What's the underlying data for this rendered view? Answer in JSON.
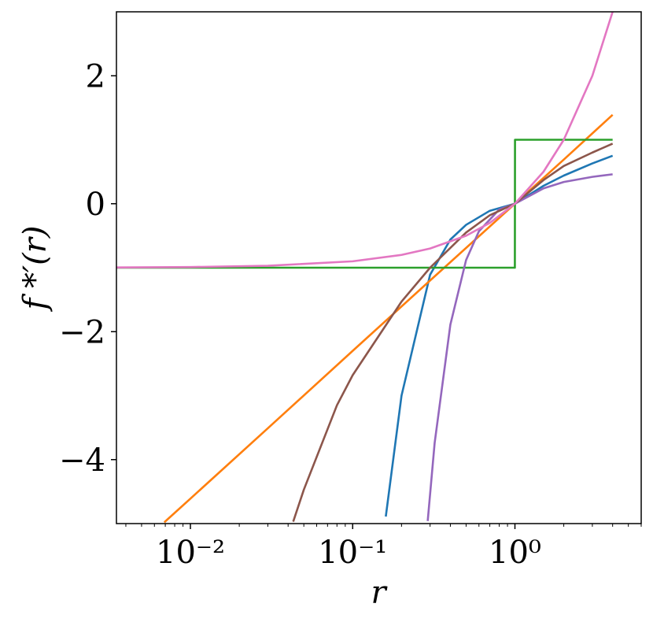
{
  "chart_data": {
    "type": "line",
    "xscale": "log",
    "xlim": [
      0.0035,
      6
    ],
    "ylim": [
      -5,
      3
    ],
    "xlabel": "r",
    "ylabel": "f *′(r)",
    "grid": false,
    "legend": "none",
    "x_ticks": [
      {
        "value": 0.01,
        "label": "10⁻²"
      },
      {
        "value": 0.1,
        "label": "10⁻¹"
      },
      {
        "value": 1,
        "label": "10⁰"
      }
    ],
    "y_ticks": [
      {
        "value": 2,
        "label": "2"
      },
      {
        "value": 0,
        "label": "0"
      },
      {
        "value": -2,
        "label": "−2"
      },
      {
        "value": -4,
        "label": "−4"
      }
    ],
    "series": [
      {
        "color": "#1f77b4",
        "x": [
          0.16,
          0.2,
          0.3,
          0.4,
          0.5,
          0.7,
          1.0,
          1.5,
          2.0,
          3.0,
          4.0
        ],
        "y": [
          -4.89,
          -3.0,
          -1.11,
          -0.56,
          -0.33,
          -0.11,
          0.0,
          0.28,
          0.44,
          0.63,
          0.75
        ]
      },
      {
        "color": "#ff7f0e",
        "x": [
          0.0069,
          0.01,
          0.03,
          0.1,
          0.3,
          1.0,
          2.0,
          4.0
        ],
        "y": [
          -4.98,
          -4.61,
          -3.51,
          -2.3,
          -1.2,
          0.0,
          0.69,
          1.39
        ]
      },
      {
        "color": "#2ca02c",
        "x": [
          0.0035,
          0.999,
          1.0,
          1.001,
          4.0
        ],
        "y": [
          -1.0,
          -1.0,
          0.0,
          1.0,
          1.0
        ]
      },
      {
        "color": "#d62728",
        "x": [],
        "y": []
      },
      {
        "color": "#9467bd",
        "x": [
          0.29,
          0.32,
          0.4,
          0.5,
          0.6,
          0.8,
          1.0,
          1.5,
          2.0,
          3.0,
          4.0
        ],
        "y": [
          -4.96,
          -3.74,
          -1.89,
          -0.88,
          -0.43,
          -0.09,
          0.0,
          0.24,
          0.34,
          0.42,
          0.46
        ]
      },
      {
        "color": "#8c564b",
        "x": [
          0.043,
          0.05,
          0.08,
          0.1,
          0.2,
          0.3,
          0.5,
          0.7,
          1.0,
          1.5,
          2.0,
          3.0,
          4.0
        ],
        "y": [
          -4.97,
          -4.47,
          -3.15,
          -2.68,
          -1.53,
          -1.0,
          -0.45,
          -0.18,
          0.0,
          0.37,
          0.59,
          0.8,
          0.94
        ]
      },
      {
        "color": "#e377c2",
        "x": [
          0.0035,
          0.01,
          0.03,
          0.1,
          0.2,
          0.3,
          0.5,
          0.7,
          1.0,
          1.5,
          2.0,
          3.0,
          4.0
        ],
        "y": [
          -0.996,
          -0.99,
          -0.97,
          -0.9,
          -0.8,
          -0.7,
          -0.5,
          -0.3,
          0.0,
          0.5,
          1.0,
          2.0,
          3.0
        ]
      }
    ]
  }
}
